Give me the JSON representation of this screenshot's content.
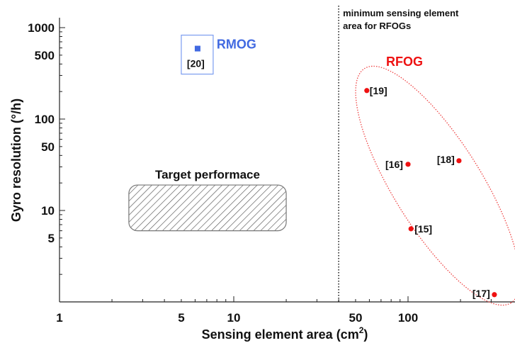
{
  "chart_data": {
    "type": "scatter",
    "x_scale": "log",
    "y_scale": "log",
    "xlabel": "Sensing element area (cm",
    "xlabel_sup": "2",
    "xlabel_close": ")",
    "ylabel": "Gyro resolution (°/h)",
    "xlim": [
      1,
      320
    ],
    "ylim": [
      1,
      1400
    ],
    "x_ticks": [
      {
        "value": 1,
        "label": "1"
      },
      {
        "value": 5,
        "label": "5"
      },
      {
        "value": 10,
        "label": "10"
      },
      {
        "value": 50,
        "label": "50"
      },
      {
        "value": 100,
        "label": "100"
      }
    ],
    "y_ticks": [
      {
        "value": 5,
        "label": "5"
      },
      {
        "value": 10,
        "label": "10"
      },
      {
        "value": 50,
        "label": "50"
      },
      {
        "value": 100,
        "label": "100"
      },
      {
        "value": 500,
        "label": "500"
      },
      {
        "value": 1000,
        "label": "1000"
      }
    ],
    "series": [
      {
        "name": "RMOG",
        "color": "#4169e1",
        "marker": "square",
        "points": [
          {
            "x": 6.2,
            "y": 590,
            "label": "[20]"
          }
        ]
      },
      {
        "name": "RFOG",
        "color": "#ee1111",
        "marker": "circle",
        "points": [
          {
            "x": 58,
            "y": 205,
            "label": "[19]"
          },
          {
            "x": 100,
            "y": 32,
            "label": "[16]"
          },
          {
            "x": 196,
            "y": 35,
            "label": "[18]"
          },
          {
            "x": 104,
            "y": 6.3,
            "label": "[15]"
          },
          {
            "x": 313,
            "y": 1.2,
            "label": "[17]"
          }
        ]
      }
    ],
    "threshold_line": {
      "x": 40,
      "style": "dotted",
      "label_line1": "minimum  sensing element",
      "label_line2": "area for RFOGs"
    },
    "target_region": {
      "label": "Target performace",
      "x_range": [
        2.5,
        20
      ],
      "y_range": [
        6,
        19
      ]
    }
  }
}
